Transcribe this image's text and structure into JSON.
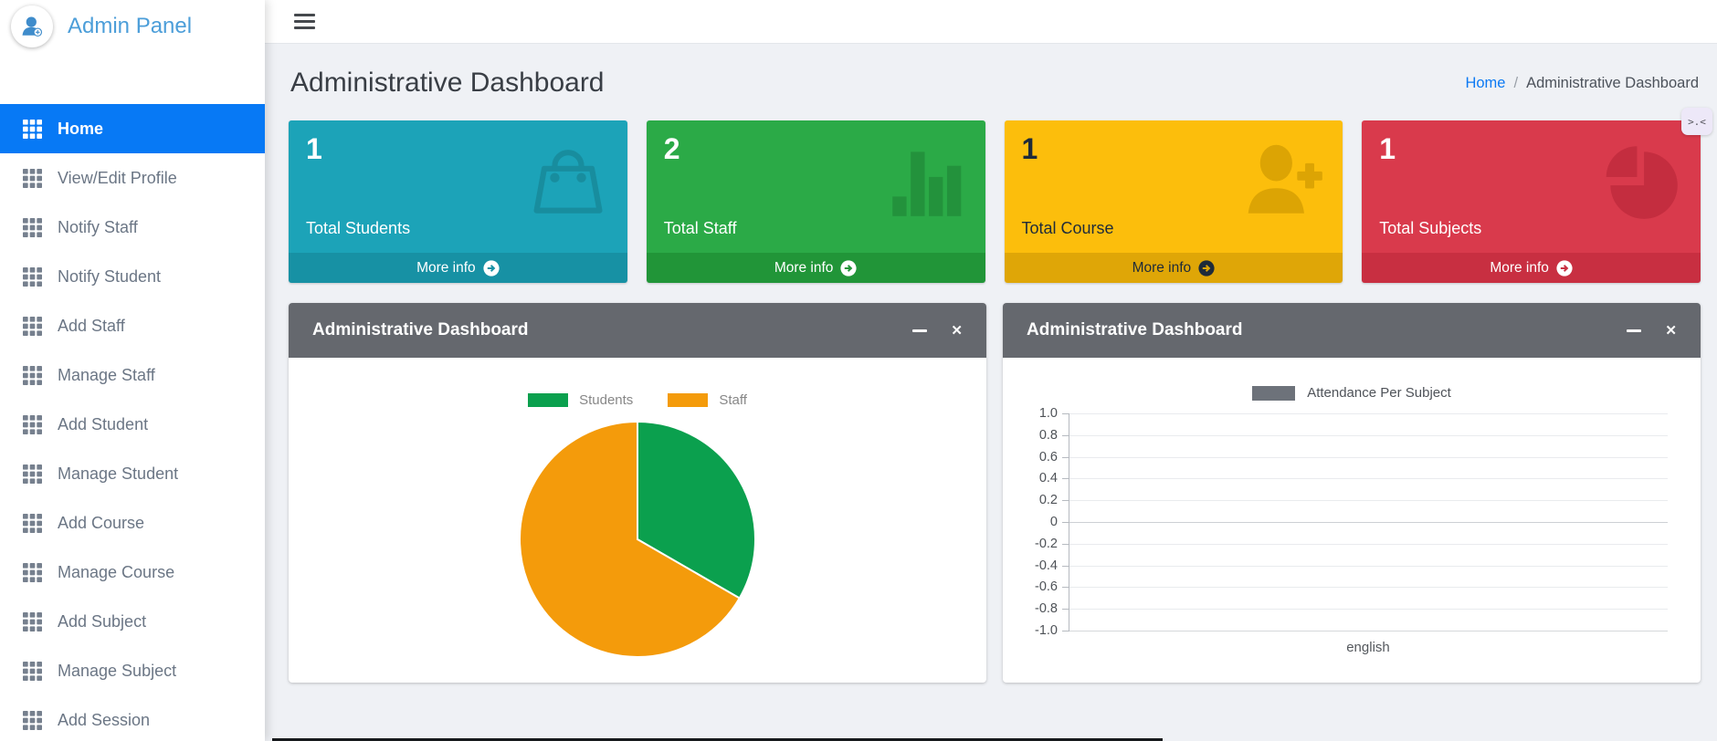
{
  "brand": {
    "name": "Admin Panel",
    "icon": "person-plus-icon"
  },
  "sidebar": {
    "items": [
      {
        "label": "Home",
        "icon": "grid-icon",
        "active": true
      },
      {
        "label": "View/Edit Profile",
        "icon": "grid-icon"
      },
      {
        "label": "Notify Staff",
        "icon": "grid-icon"
      },
      {
        "label": "Notify Student",
        "icon": "grid-icon"
      },
      {
        "label": "Add Staff",
        "icon": "grid-icon"
      },
      {
        "label": "Manage Staff",
        "icon": "grid-icon"
      },
      {
        "label": "Add Student",
        "icon": "grid-icon"
      },
      {
        "label": "Manage Student",
        "icon": "grid-icon"
      },
      {
        "label": "Add Course",
        "icon": "grid-icon"
      },
      {
        "label": "Manage Course",
        "icon": "grid-icon"
      },
      {
        "label": "Add Subject",
        "icon": "grid-icon"
      },
      {
        "label": "Manage Subject",
        "icon": "grid-icon"
      },
      {
        "label": "Add Session",
        "icon": "grid-icon"
      }
    ]
  },
  "topbar": {
    "menu_icon": "hamburger-icon"
  },
  "page": {
    "title": "Administrative Dashboard",
    "breadcrumb": {
      "home": "Home",
      "separator": "/",
      "current": "Administrative Dashboard"
    },
    "overlay_button": ">.<"
  },
  "info_boxes": [
    {
      "value": "1",
      "label": "Total Students",
      "action": "More info",
      "icon": "bag-icon",
      "bg": "#1CA3B8",
      "footer_bg": "#1791A4",
      "icon_color": "#188D9E",
      "text": "#FFFFFF"
    },
    {
      "value": "2",
      "label": "Total Staff",
      "action": "More info",
      "icon": "stats-bars-icon",
      "bg": "#2BAA47",
      "footer_bg": "#219538",
      "icon_color": "#23923C",
      "text": "#FFFFFF"
    },
    {
      "value": "1",
      "label": "Total Course",
      "action": "More info",
      "icon": "person-add-icon",
      "bg": "#FCBE0C",
      "footer_bg": "#DFA607",
      "icon_color": "#DCA404",
      "text": "#1E2B3A"
    },
    {
      "value": "1",
      "label": "Total Subjects",
      "action": "More info",
      "icon": "pie-chart-icon",
      "bg": "#D93A4C",
      "footer_bg": "#C82F41",
      "icon_color": "#C42D3F",
      "text": "#FFFFFF"
    }
  ],
  "panels": [
    {
      "title": "Administrative Dashboard",
      "close_icon": "✕"
    },
    {
      "title": "Administrative Dashboard",
      "close_icon": "✕"
    }
  ],
  "chart_data": [
    {
      "type": "pie",
      "panel": "left",
      "title": "Administrative Dashboard",
      "legend_position": "top",
      "start_angle_deg": -90,
      "direction": "clockwise",
      "legend_text_color": "#878787",
      "series": [
        {
          "name": "Students",
          "value": 1,
          "color": "#0BA04E"
        },
        {
          "name": "Staff",
          "value": 2,
          "color": "#F49B0B"
        }
      ]
    },
    {
      "type": "bar",
      "panel": "right",
      "title": "Administrative Dashboard",
      "legend": "Attendance Per Subject",
      "legend_swatch_color": "#6D727A",
      "categories": [
        "english"
      ],
      "series": [
        {
          "name": "Attendance Per Subject",
          "values": [
            0
          ],
          "color": "#6D727A"
        }
      ],
      "ylim": [
        -1,
        1
      ],
      "ytick_step": 0.2,
      "yticks": [
        "1.0",
        "0.8",
        "0.6",
        "0.4",
        "0.2",
        "0",
        "-0.2",
        "-0.4",
        "-0.6",
        "-0.8",
        "-1.0"
      ],
      "grid": true
    }
  ]
}
